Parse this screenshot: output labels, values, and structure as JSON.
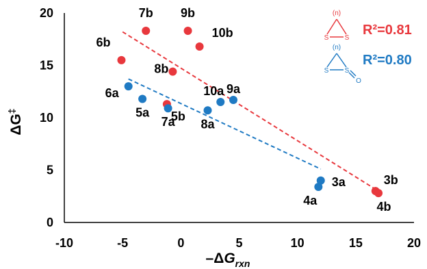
{
  "chart_data": {
    "type": "scatter",
    "xlim": [
      -10,
      20
    ],
    "ylim": [
      0,
      20
    ],
    "xticks": [
      "-10",
      "-5",
      "0",
      "5",
      "10",
      "15",
      "20"
    ],
    "yticks": [
      "0",
      "5",
      "10",
      "15",
      "20"
    ],
    "xlabel": {
      "prefix": "–Δ",
      "main": "G",
      "sub": "rxn"
    },
    "ylabel": {
      "main": "ΔG",
      "sup": "‡"
    },
    "series": [
      {
        "color": "#e8383d",
        "trend": {
          "x": [
            -5.0,
            16.8
          ],
          "y": [
            18.2,
            3.1
          ]
        },
        "r2_label": "R²=0.81",
        "structure_text": {
          "n": "(n)",
          "s1": "S",
          "s2": "S"
        },
        "points": [
          {
            "label": "7b",
            "x": -3.0,
            "y": 18.3
          },
          {
            "label": "9b",
            "x": 0.6,
            "y": 18.3
          },
          {
            "label": "10b",
            "x": 1.6,
            "y": 16.8
          },
          {
            "label": "6b",
            "x": -5.1,
            "y": 15.5
          },
          {
            "label": "8b",
            "x": -0.7,
            "y": 14.4
          },
          {
            "label": "5b",
            "x": -1.2,
            "y": 11.3
          },
          {
            "label": "3b",
            "x": 16.7,
            "y": 3.0
          },
          {
            "label": "4b",
            "x": 16.95,
            "y": 2.8
          }
        ]
      },
      {
        "color": "#1f7ac3",
        "trend": {
          "x": [
            -4.5,
            12.0
          ],
          "y": [
            13.7,
            5.1
          ]
        },
        "r2_label": "R²=0.80",
        "structure_text": {
          "n": "(n)",
          "s1": "S",
          "s2": "S",
          "o": "O"
        },
        "points": [
          {
            "label": "6a",
            "x": -4.5,
            "y": 13.0
          },
          {
            "label": "5a",
            "x": -3.3,
            "y": 11.8
          },
          {
            "label": "7a",
            "x": -1.1,
            "y": 10.9
          },
          {
            "label": "8a",
            "x": 2.3,
            "y": 10.7
          },
          {
            "label": "10a",
            "x": 3.4,
            "y": 11.5
          },
          {
            "label": "9a",
            "x": 4.5,
            "y": 11.7
          },
          {
            "label": "3a",
            "x": 12.0,
            "y": 4.0
          },
          {
            "label": "4a",
            "x": 11.8,
            "y": 3.4
          }
        ]
      }
    ]
  }
}
